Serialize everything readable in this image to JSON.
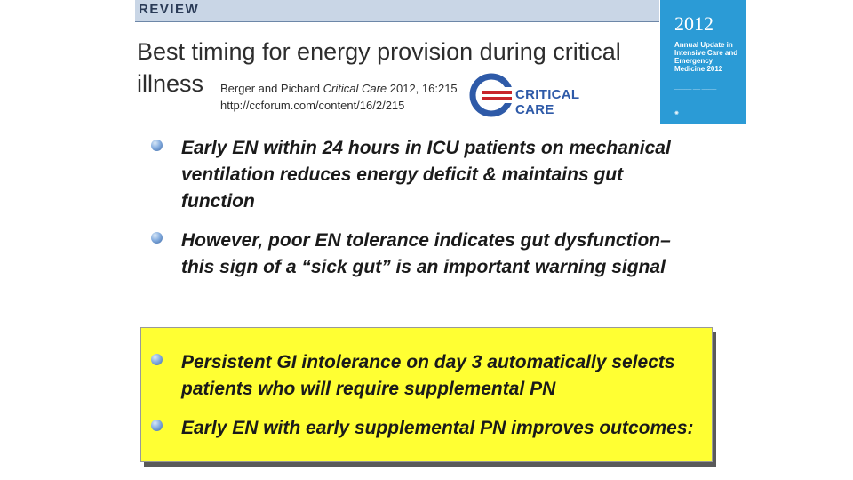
{
  "header": {
    "review_label": "REVIEW",
    "article_title_line1": "Best timing for energy provision during critical",
    "article_title_line2": "illness",
    "citation_authors": "Berger and Pichard ",
    "citation_journal": "Critical Care",
    "citation_year_vol": " 2012, 16:215",
    "citation_url": "http://ccforum.com/content/16/2/215",
    "logo_text": "CRITICAL CARE",
    "colors": {
      "review_band": "#c9d6e6",
      "logo_blue": "#2e5aa8",
      "logo_red": "#c8242b"
    }
  },
  "book_cover": {
    "year": "2012",
    "title": "Annual Update in Intensive Care and Emergency Medicine 2012",
    "background": "#2b9bd6"
  },
  "bullets": [
    {
      "text": "Early EN within 24 hours in ICU patients on mechanical ventilation reduces energy deficit & maintains gut function"
    },
    {
      "text_line1": "However, poor EN tolerance indicates gut dysfunction–",
      "text_line2": "this sign of a “sick gut” is an important warning signal"
    },
    {
      "text": "Persistent GI intolerance on day 3 automatically selects patients who will require supplemental PN"
    },
    {
      "text": "Early EN with early supplemental PN improves outcomes:"
    }
  ],
  "highlight_color": "#ffff33",
  "bullet_icon": "sphere-bullet-icon"
}
